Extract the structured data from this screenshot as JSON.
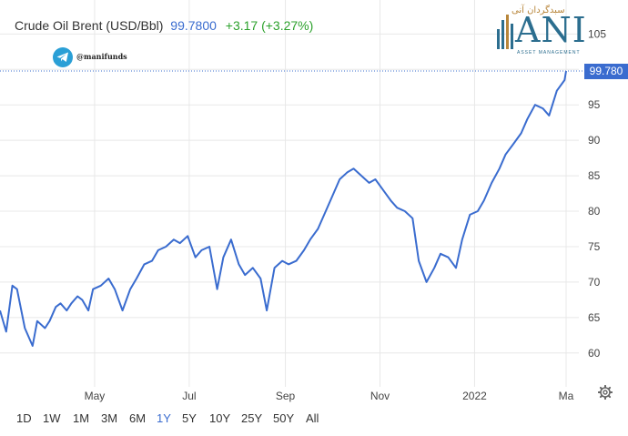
{
  "header": {
    "instrument": "Crude Oil Brent (USD/Bbl)",
    "price": "99.7800",
    "change": "+3.17 (+3.27%)"
  },
  "watermark": {
    "handle": "@manifunds",
    "logo_arabic": "سبدگردان آنی",
    "logo_text": "ANI",
    "logo_sub": "ASSET MANAGEMENT"
  },
  "price_label": "99.780",
  "time_ranges": [
    "1D",
    "1W",
    "1M",
    "3M",
    "6M",
    "1Y",
    "5Y",
    "10Y",
    "25Y",
    "50Y",
    "All"
  ],
  "active_range": "1Y",
  "colors": {
    "line": "#3a6ccf",
    "positive": "#2ca12c",
    "tag": "#3a6ccf",
    "grid": "#e8e8e8"
  },
  "chart_data": {
    "type": "line",
    "title": "Crude Oil Brent (USD/Bbl)",
    "x_tick_labels": [
      "May",
      "Jul",
      "Sep",
      "Nov",
      "2022",
      "Ma"
    ],
    "y_ticks": [
      60,
      65,
      70,
      75,
      80,
      85,
      90,
      95,
      100,
      105
    ],
    "y_tick_labels": [
      "60",
      "65",
      "70",
      "75",
      "80",
      "85",
      "90",
      "95",
      "",
      "105"
    ],
    "ylim": [
      55,
      108
    ],
    "grid": true,
    "current_value": 99.78,
    "series": [
      {
        "x": [
          "2021-03-01",
          "2021-03-05",
          "2021-03-09",
          "2021-03-12",
          "2021-03-17",
          "2021-03-22",
          "2021-03-25",
          "2021-03-30",
          "2021-04-02",
          "2021-04-06",
          "2021-04-09",
          "2021-04-13",
          "2021-04-16",
          "2021-04-20",
          "2021-04-23",
          "2021-04-27",
          "2021-04-30",
          "2021-05-05",
          "2021-05-10",
          "2021-05-14",
          "2021-05-19",
          "2021-05-24",
          "2021-05-28",
          "2021-06-02",
          "2021-06-07",
          "2021-06-11",
          "2021-06-16",
          "2021-06-21",
          "2021-06-25",
          "2021-06-30",
          "2021-07-05",
          "2021-07-09",
          "2021-07-14",
          "2021-07-19",
          "2021-07-23",
          "2021-07-28",
          "2021-08-02",
          "2021-08-06",
          "2021-08-11",
          "2021-08-16",
          "2021-08-20",
          "2021-08-25",
          "2021-08-30",
          "2021-09-03",
          "2021-09-08",
          "2021-09-13",
          "2021-09-17",
          "2021-09-22",
          "2021-09-27",
          "2021-10-01",
          "2021-10-06",
          "2021-10-11",
          "2021-10-15",
          "2021-10-20",
          "2021-10-25",
          "2021-10-29",
          "2021-11-03",
          "2021-11-08",
          "2021-11-12",
          "2021-11-17",
          "2021-11-22",
          "2021-11-26",
          "2021-12-01",
          "2021-12-06",
          "2021-12-10",
          "2021-12-15",
          "2021-12-20",
          "2021-12-24",
          "2021-12-29",
          "2022-01-03",
          "2022-01-07",
          "2022-01-12",
          "2022-01-17",
          "2022-01-21",
          "2022-01-26",
          "2022-01-31",
          "2022-02-04",
          "2022-02-09",
          "2022-02-14",
          "2022-02-18",
          "2022-02-23",
          "2022-02-28",
          "2022-03-01"
        ],
        "values": [
          66.0,
          63.0,
          69.5,
          69.0,
          63.5,
          61.0,
          64.5,
          63.5,
          64.5,
          66.5,
          67.0,
          66.0,
          67.0,
          68.0,
          67.5,
          66.0,
          69.0,
          69.5,
          70.5,
          69.0,
          66.0,
          69.0,
          70.5,
          72.5,
          73.0,
          74.5,
          75.0,
          76.0,
          75.5,
          76.5,
          73.5,
          74.5,
          75.0,
          69.0,
          73.5,
          76.0,
          72.5,
          71.0,
          72.0,
          70.5,
          66.0,
          72.0,
          73.0,
          72.5,
          73.0,
          74.5,
          76.0,
          77.5,
          80.0,
          82.0,
          84.5,
          85.5,
          86.0,
          85.0,
          84.0,
          84.5,
          83.0,
          81.5,
          80.5,
          80.0,
          79.0,
          73.0,
          70.0,
          72.0,
          74.0,
          73.5,
          72.0,
          76.0,
          79.5,
          80.0,
          81.5,
          84.0,
          86.0,
          88.0,
          89.5,
          91.0,
          93.0,
          95.0,
          94.5,
          93.5,
          97.0,
          98.5,
          99.78
        ]
      }
    ]
  }
}
